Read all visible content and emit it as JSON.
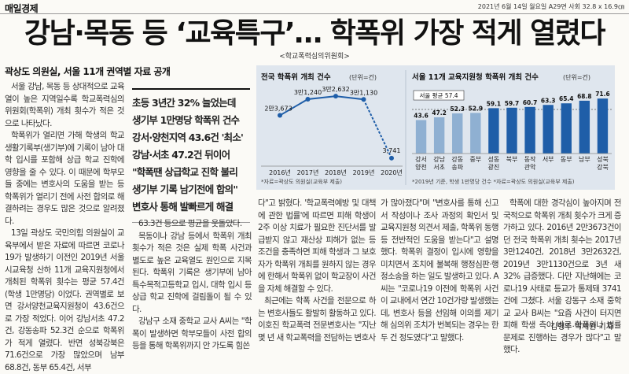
{
  "masthead": "매일경제",
  "dateline": "2021년 6월 14일 월요일 A29면 사회 32.8 x 16.9㎝",
  "headline": "강남·목동 등 ‘교육특구’… 학폭위 가장 적게 열렸다",
  "source": "<학교폭력심의위원회>",
  "subhead": "곽상도 의원실, 서울 11개 권역별 자료 공개",
  "pullquote": {
    "lines": [
      "초등 3년간 32% 늘었는데",
      "생기부 1만명당 학폭위 건수",
      "강서·양천지역 43.6건 '최소'",
      "강남·서초 47.2건 뒤이어",
      "\"학폭땐 상급학교 진학 불리",
      "생기부 기록 남기전에 합의\"",
      "변호사 통해 발빠르게 해결"
    ]
  },
  "charts": {
    "colors": {
      "background": "#dfe6ee",
      "line": "#1f5ea8",
      "bar_dark": "#1f5ea8",
      "bar_light": "#8fb0d2",
      "highlight": "#ffffff"
    },
    "left": {
      "title": "전국 학폭위 개최 건수",
      "unit": "(단위=건)",
      "note": "*자료=곽상도 의원실(교육부 제출)",
      "point_labels": [
        "2만3,673",
        "3만1,240",
        "3만2,632",
        "3만1,130",
        "3,741"
      ]
    },
    "right": {
      "title": "서울 11개 교육지원청 학폭위 개최 건수",
      "unit": "(단위=건)",
      "average_label": "서울 평균 57.4",
      "note": "*2019년 기준, 학생 1만명당 건수 *자료=곽상도 의원실(교육부 제출)"
    }
  },
  "chart_data": [
    {
      "type": "line",
      "title": "전국 학폭위 개최 건수",
      "unit": "(단위=건)",
      "x": [
        "2016년",
        "2017년",
        "2018년",
        "2019년",
        "2020년"
      ],
      "series": [
        {
          "values": [
            23673,
            31240,
            32632,
            31130,
            3741
          ]
        }
      ],
      "ylim": [
        0,
        36000
      ]
    },
    {
      "type": "bar",
      "title": "서울 11개 교육지원청 학폭위 개최 건수",
      "unit": "(단위=건)",
      "categories": [
        "강서 양천",
        "강남 서초",
        "강동 송파",
        "중부",
        "성동 광진",
        "북부",
        "동작 관악",
        "서부",
        "동부",
        "남부",
        "성북 강북"
      ],
      "values": [
        43.6,
        47.2,
        52.3,
        52.9,
        59.1,
        59.7,
        60.7,
        63.3,
        65.4,
        68.8,
        71.6
      ],
      "average": 57.4,
      "ylim": [
        0,
        80
      ]
    }
  ],
  "article": {
    "col_a": [
      "서울 강남, 목동 등 상대적으로 교육열이 높은 지역일수록 학교폭력심의위원회(학폭위) 개최 횟수가 적은 것으로 나타났다.",
      "학폭위가 열리면 가해 학생의 학교생활기록부(생기부)에 기록이 남아 대학 입시를 포함해 상급 학교 진학에 영향을 줄 수 있다. 이 때문에 학부모들 중에는 변호사의 도움을 받는 등 학폭위가 열리기 전에 사전 합의로 해결하려는 경우도 많은 것으로 알려졌다.",
      "13일 곽상도 국민의힘 의원실이 교육부에서 받은 자료에 따르면 코로나19가 발생하기 이전인 2019년 서울시교육청 산하 11개 교육지원청에서 개최된 학폭위 횟수는 평균 57.4건(학생 1만명당) 이었다. 권역별로 보면 강서양천교육지원청이 43.6건으로 가장 적었다. 이어 강남서초 47.2건, 강동송파 52.3건 순으로 학폭위가 적게 열렸다. 반면 성북강북은 71.6건으로 가장 많았으며 남부 68.8건, 동부 65.4건, 서부"
    ],
    "col_b": [
      "63.3건 등으로 평균을 웃돌았다.",
      "목동이나 강남 등에서 학폭위 개최 횟수가 적은 것은 실제 학폭 사건과 별도로 높은 교육열도 원인으로 지목된다. 학폭위 기록은 생기부에 남아 특수목적고등학교 입시, 대학 입시 등 상급 학교 진학에 걸림돌이 될 수 있다.",
      "강남구 소재 중학교 교사 A씨는 \"학폭이 발생하면 학부모들이 사전 합의 등을 통해 학폭위까지 안 가도록 힘쓴"
    ],
    "col_c": [
      "다\"고 밝혔다. '학교폭력예방 및 대책에 관한 법률'에 따르면 피해 학생이 2주 이상 치료가 필요한 진단서를 발급받지 않고 재산상 피해가 없는 등 조건을 충족하면 피해 학생과 그 보호자가 학폭위 개최를 원하지 않는 경우에 한해서 학폭위 없이 학교장이 사건을 자체 해결할 수 있다.",
      "최근에는 학폭 사건을 전문으로 하는 변호사들도 활발히 활동하고 있다. 이호진 학교폭력 전문변호사는 \"지난 몇 년 새 학교폭력을 전담하는 변호사"
    ],
    "col_d": [
      "가 많아졌다\"며 \"변호사를 통해 신고서 작성이나 조사 과정의 확인서 및 교육지원청 의견서 제출, 학폭위 동행 등 전반적인 도움을 받는다\"고 설명했다. 학폭위 결정이 입시에 영향을 미치면서 조치에 불복해 행정심판·행정소송을 하는 일도 발생하고 있다. A씨는 \"코로나19 이전에 학폭위 사건이 교내에서 연간 10건가량 발생했는데, 변호사 등을 선임해 이의를 제기해 심의위 조치가 번복되는 경우는 한두 건 정도였다\"고 말했다."
    ],
    "col_e": [
      "학폭에 대한 경각심이 높아지며 전국적으로 학폭위 개최 횟수가 크게 증가하고 있다. 2016년 2만3673건이던 전국 학폭위 개최 횟수는 2017년 3만1240건, 2018년 3만2632건, 2019년 3만1130건으로 3년 새 32% 급증했다. 다만 지난해에는 코로나19 사태로 등교가 통제돼 3741건에 그쳤다. 서울 강동구 소재 중학교 교사 B씨는 \"요즘 사건이 터지면 피해 학생 측이 바로 학폭위나 법률 문제로 진행하는 경우가 많다\"고 말했다."
    ],
    "byline": "김형주·박제완 기자"
  }
}
